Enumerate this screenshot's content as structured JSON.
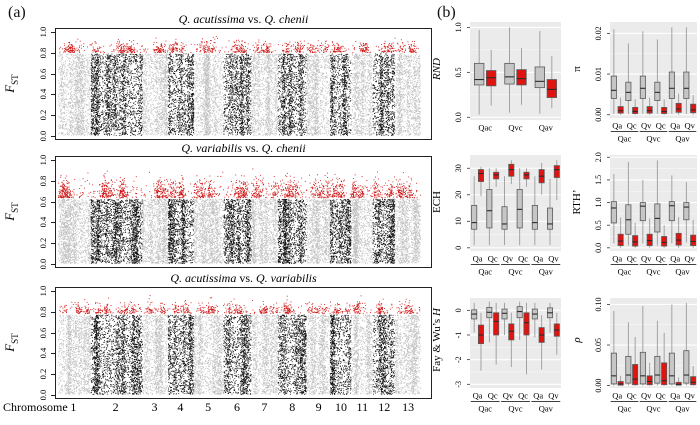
{
  "panel_a": {
    "label": "(a)"
  },
  "panel_b": {
    "label": "(b)"
  },
  "colors": {
    "point_gray": "#bdbdbd",
    "point_black": "#0a0a0a",
    "point_red": "#cf1010",
    "box_gray_fill": "#c6c6c6",
    "box_red_fill": "#df1310",
    "box_border": "#5a5a5a",
    "median_line": "#2b2b2b",
    "whisker": "#9a9a9a",
    "panel_bg": "#ebebeb",
    "grid_line": "#ffffff",
    "frame": "#222222"
  },
  "xaxis": {
    "title": "Chromosome",
    "chromosomes": [
      "1",
      "2",
      "3",
      "4",
      "5",
      "6",
      "7",
      "8",
      "9",
      "10",
      "11",
      "12",
      "13"
    ],
    "rel_widths": [
      33,
      52,
      26,
      26,
      30,
      28,
      27,
      29,
      24,
      21,
      22,
      22,
      26
    ]
  },
  "chart_data": [
    {
      "type": "scatter",
      "subtype": "manhattan",
      "id": "fst-acutissima-chenii",
      "title": {
        "left": "Q. acutissima",
        "vs": " vs. ",
        "right": "Q. chenii"
      },
      "ylabel": {
        "main": "F",
        "sub": "ST"
      },
      "ylim": [
        0,
        1
      ],
      "yticks": [
        0.0,
        0.2,
        0.4,
        0.6,
        0.8,
        1.0
      ],
      "ytick_labels": [
        "0.0",
        "0.2",
        "0.4",
        "0.6",
        "0.8",
        "1.0"
      ],
      "outlier_threshold": 0.8,
      "outlier_band_max": 0.975,
      "red_density": 3.2,
      "red_sigma": 0.05,
      "description": "Sliding-window FST across 13 chromosomes; gray/black alternate by chromosome; red points are outlier windows above threshold"
    },
    {
      "type": "scatter",
      "subtype": "manhattan",
      "id": "fst-variabilis-chenii",
      "title": {
        "left": "Q. variabilis",
        "vs": " vs. ",
        "right": "Q. chenii"
      },
      "ylabel": {
        "main": "F",
        "sub": "ST"
      },
      "ylim": [
        0,
        1
      ],
      "yticks": [
        0.0,
        0.2,
        0.4,
        0.6,
        0.8,
        1.0
      ],
      "ytick_labels": [
        "0.0",
        "0.2",
        "0.4",
        "0.6",
        "0.8",
        "1.0"
      ],
      "outlier_threshold": 0.63,
      "outlier_band_max": 0.93,
      "red_density": 5.5,
      "red_sigma": 0.085,
      "description": "Sliding-window FST across 13 chromosomes; gray/black alternate by chromosome; red points are outlier windows above threshold"
    },
    {
      "type": "scatter",
      "subtype": "manhattan",
      "id": "fst-acutissima-variabilis",
      "title": {
        "left": "Q. acutissima",
        "vs": " vs. ",
        "right": "Q. variabilis"
      },
      "ylabel": {
        "main": "F",
        "sub": "ST"
      },
      "ylim": [
        0,
        1
      ],
      "yticks": [
        0.0,
        0.2,
        0.4,
        0.6,
        0.8,
        1.0
      ],
      "ytick_labels": [
        "0.0",
        "0.2",
        "0.4",
        "0.6",
        "0.8",
        "1.0"
      ],
      "outlier_threshold": 0.78,
      "outlier_band_max": 0.975,
      "red_density": 3.0,
      "red_sigma": 0.052,
      "description": "Sliding-window FST across 13 chromosomes; gray/black alternate by chromosome; red points are outlier windows above threshold"
    },
    {
      "type": "box",
      "id": "rnd",
      "ylabel": {
        "roman": "",
        "italic": "RND"
      },
      "ylim": [
        -0.03,
        1.06
      ],
      "yticks": [
        0.0,
        0.5,
        1.0
      ],
      "ytick_labels": [
        "0.0",
        "0.5",
        "1.0"
      ],
      "positions": [
        {
          "label": "Qac",
          "gray": [
            0.03,
            0.36,
            0.42,
            0.6,
            0.97
          ],
          "red": [
            0.13,
            0.35,
            0.44,
            0.52,
            0.75
          ]
        },
        {
          "label": "Qvc",
          "gray": [
            0.05,
            0.37,
            0.45,
            0.6,
            1.0
          ],
          "red": [
            0.14,
            0.36,
            0.43,
            0.53,
            0.77
          ]
        },
        {
          "label": "Qav",
          "gray": [
            0.04,
            0.33,
            0.4,
            0.56,
            0.96
          ],
          "red": [
            0.1,
            0.22,
            0.31,
            0.42,
            0.68
          ]
        }
      ],
      "groups": null
    },
    {
      "type": "box",
      "id": "pi",
      "ylabel": {
        "roman": "π",
        "italic": ""
      },
      "ylim": [
        -0.0008,
        0.0228
      ],
      "yticks": [
        0.0,
        0.01,
        0.02
      ],
      "ytick_labels": [
        "0.00",
        "0.01",
        "0.02"
      ],
      "positions": [
        {
          "label": "Qa",
          "gray": [
            0.0002,
            0.004,
            0.006,
            0.0095,
            0.021
          ],
          "red": [
            0,
            0.0004,
            0.001,
            0.002,
            0.0042
          ]
        },
        {
          "label": "Qc",
          "gray": [
            0.0002,
            0.0035,
            0.0055,
            0.008,
            0.0175
          ],
          "red": [
            0,
            0.0003,
            0.0008,
            0.0018,
            0.0038
          ]
        },
        {
          "label": "Qv",
          "gray": [
            0.0002,
            0.004,
            0.0065,
            0.0095,
            0.0205
          ],
          "red": [
            0,
            0.0004,
            0.001,
            0.002,
            0.0042
          ]
        },
        {
          "label": "Qc",
          "gray": [
            0.0002,
            0.0035,
            0.0055,
            0.008,
            0.0185
          ],
          "red": [
            0,
            0.0003,
            0.0008,
            0.0018,
            0.0038
          ]
        },
        {
          "label": "Qa",
          "gray": [
            0.0002,
            0.004,
            0.0065,
            0.0105,
            0.0215
          ],
          "red": [
            0,
            0.0006,
            0.0014,
            0.0028,
            0.0052
          ]
        },
        {
          "label": "Qv",
          "gray": [
            0.0002,
            0.004,
            0.0065,
            0.0105,
            0.0215
          ],
          "red": [
            0,
            0.0005,
            0.0012,
            0.0026,
            0.0048
          ]
        }
      ],
      "groups": [
        {
          "label": "Qac",
          "from": 0,
          "to": 1
        },
        {
          "label": "Qvc",
          "from": 2,
          "to": 3
        },
        {
          "label": "Qav",
          "from": 4,
          "to": 5
        }
      ]
    },
    {
      "type": "box",
      "id": "ech",
      "ylabel": {
        "roman": "ECH",
        "italic": ""
      },
      "ylim": [
        -1.2,
        35
      ],
      "yticks": [
        0,
        10,
        20,
        30
      ],
      "ytick_labels": [
        "0",
        "10",
        "20",
        "30"
      ],
      "positions": [
        {
          "label": "Qa",
          "gray": [
            1,
            7.0,
            9.5,
            16.0,
            27
          ],
          "red": [
            19.5,
            25.0,
            28.0,
            29.5,
            30.5
          ]
        },
        {
          "label": "Qc",
          "gray": [
            1,
            7.5,
            14.0,
            22.0,
            30
          ],
          "red": [
            23.0,
            26.0,
            27.5,
            28.5,
            30.0
          ]
        },
        {
          "label": "Qv",
          "gray": [
            1,
            7.0,
            9.0,
            15.5,
            27
          ],
          "red": [
            24.0,
            27.0,
            29.5,
            31.5,
            33.0
          ]
        },
        {
          "label": "Qc",
          "gray": [
            1,
            7.5,
            14.5,
            22.0,
            30
          ],
          "red": [
            23.0,
            26.0,
            27.5,
            28.5,
            30.0
          ]
        },
        {
          "label": "Qa",
          "gray": [
            1,
            7.0,
            9.5,
            16.0,
            27
          ],
          "red": [
            20.0,
            24.5,
            27.0,
            29.5,
            32.0
          ]
        },
        {
          "label": "Qv",
          "gray": [
            1,
            7.0,
            9.0,
            15.0,
            26
          ],
          "red": [
            18.0,
            26.5,
            29.5,
            31.0,
            33.0
          ]
        }
      ],
      "groups": [
        {
          "label": "Qac",
          "from": 0,
          "to": 1
        },
        {
          "label": "Qvc",
          "from": 2,
          "to": 3
        },
        {
          "label": "Qav",
          "from": 4,
          "to": 5
        }
      ]
    },
    {
      "type": "box",
      "id": "rth",
      "ylabel": {
        "roman": "RTH’",
        "italic": ""
      },
      "ylim": [
        -0.07,
        2.05
      ],
      "yticks": [
        0.0,
        0.5,
        1.0,
        1.5,
        2.0
      ],
      "ytick_labels": [
        "0.0",
        "0.5",
        "1.0",
        "1.5",
        "2.0"
      ],
      "positions": [
        {
          "label": "Qa",
          "gray": [
            0.1,
            0.55,
            0.88,
            1.02,
            1.63
          ],
          "red": [
            0,
            0.05,
            0.15,
            0.3,
            0.67
          ]
        },
        {
          "label": "Qc",
          "gray": [
            0.05,
            0.3,
            0.62,
            0.95,
            1.9
          ],
          "red": [
            0,
            0.04,
            0.13,
            0.27,
            0.55
          ]
        },
        {
          "label": "Qv",
          "gray": [
            0.1,
            0.6,
            0.92,
            1.0,
            1.5
          ],
          "red": [
            0,
            0.05,
            0.16,
            0.3,
            0.65
          ]
        },
        {
          "label": "Qc",
          "gray": [
            0.05,
            0.35,
            0.65,
            0.97,
            1.93
          ],
          "red": [
            0,
            0.04,
            0.12,
            0.25,
            0.5
          ]
        },
        {
          "label": "Qa",
          "gray": [
            0.1,
            0.6,
            0.93,
            1.02,
            1.6
          ],
          "red": [
            0,
            0.06,
            0.17,
            0.32,
            0.68
          ]
        },
        {
          "label": "Qv",
          "gray": [
            0.12,
            0.62,
            0.9,
            1.0,
            1.45
          ],
          "red": [
            0,
            0.05,
            0.14,
            0.28,
            0.62
          ]
        }
      ],
      "groups": [
        {
          "label": "Qac",
          "from": 0,
          "to": 1
        },
        {
          "label": "Qvc",
          "from": 2,
          "to": 3
        },
        {
          "label": "Qav",
          "from": 4,
          "to": 5
        }
      ]
    },
    {
      "type": "box",
      "id": "fay-wu-h",
      "ylabel": {
        "roman": "Fay & Wu’s ",
        "italic": "H"
      },
      "ylim": [
        -3.15,
        0.5
      ],
      "yticks": [
        0,
        -1,
        -2,
        -3
      ],
      "ytick_labels": [
        "0",
        "-1",
        "-2",
        "-3"
      ],
      "positions": [
        {
          "label": "Qa",
          "gray": [
            -0.9,
            -0.35,
            -0.15,
            0.02,
            0.3
          ],
          "red": [
            -2.45,
            -1.35,
            -1.0,
            -0.6,
            -0.1
          ]
        },
        {
          "label": "Qc",
          "gray": [
            -1.3,
            -0.3,
            -0.08,
            0.12,
            0.35
          ],
          "red": [
            -2.2,
            -1.0,
            -0.45,
            -0.1,
            0.3
          ]
        },
        {
          "label": "Qv",
          "gray": [
            -1.0,
            -0.35,
            -0.12,
            0.05,
            0.3
          ],
          "red": [
            -2.3,
            -1.2,
            -0.85,
            -0.55,
            -0.1
          ]
        },
        {
          "label": "Qc",
          "gray": [
            -1.2,
            -0.3,
            -0.05,
            0.15,
            0.35
          ],
          "red": [
            -2.6,
            -1.0,
            -0.5,
            -0.1,
            0.3
          ]
        },
        {
          "label": "Qa",
          "gray": [
            -1.1,
            -0.35,
            -0.15,
            0.05,
            0.3
          ],
          "red": [
            -2.4,
            -1.3,
            -1.0,
            -0.7,
            -0.2
          ]
        },
        {
          "label": "Qv",
          "gray": [
            -0.9,
            -0.3,
            -0.1,
            0.1,
            0.3
          ],
          "red": [
            -1.8,
            -1.05,
            -0.8,
            -0.55,
            -0.1
          ]
        }
      ],
      "groups": [
        {
          "label": "Qac",
          "from": 0,
          "to": 1
        },
        {
          "label": "Qvc",
          "from": 2,
          "to": 3
        },
        {
          "label": "Qav",
          "from": 4,
          "to": 5
        }
      ]
    },
    {
      "type": "box",
      "id": "rho",
      "ylabel": {
        "roman": "",
        "italic": "ρ"
      },
      "ylim": [
        -0.003,
        0.108
      ],
      "yticks": [
        0.0,
        0.05,
        0.1
      ],
      "ytick_labels": [
        "0.00",
        "0.05",
        "0.10"
      ],
      "positions": [
        {
          "label": "Qa",
          "gray": [
            0,
            0.002,
            0.012,
            0.04,
            0.092
          ],
          "red": [
            0,
            0.0005,
            0.002,
            0.005,
            0.012
          ]
        },
        {
          "label": "Qc",
          "gray": [
            0,
            0.003,
            0.013,
            0.036,
            0.078
          ],
          "red": [
            0,
            0.001,
            0.008,
            0.026,
            0.06
          ]
        },
        {
          "label": "Qv",
          "gray": [
            0,
            0.002,
            0.012,
            0.041,
            0.098
          ],
          "red": [
            0,
            0.001,
            0.005,
            0.012,
            0.028
          ]
        },
        {
          "label": "Qc",
          "gray": [
            0,
            0.003,
            0.013,
            0.036,
            0.08
          ],
          "red": [
            0,
            0.001,
            0.006,
            0.028,
            0.065
          ]
        },
        {
          "label": "Qa",
          "gray": [
            0,
            0.002,
            0.012,
            0.04,
            0.1
          ],
          "red": [
            0,
            0.0005,
            0.0015,
            0.004,
            0.01
          ]
        },
        {
          "label": "Qv",
          "gray": [
            0,
            0.003,
            0.013,
            0.043,
            0.102
          ],
          "red": [
            0,
            0.001,
            0.004,
            0.011,
            0.024
          ]
        }
      ],
      "groups": [
        {
          "label": "Qac",
          "from": 0,
          "to": 1
        },
        {
          "label": "Qvc",
          "from": 2,
          "to": 3
        },
        {
          "label": "Qav",
          "from": 4,
          "to": 5
        }
      ]
    }
  ]
}
